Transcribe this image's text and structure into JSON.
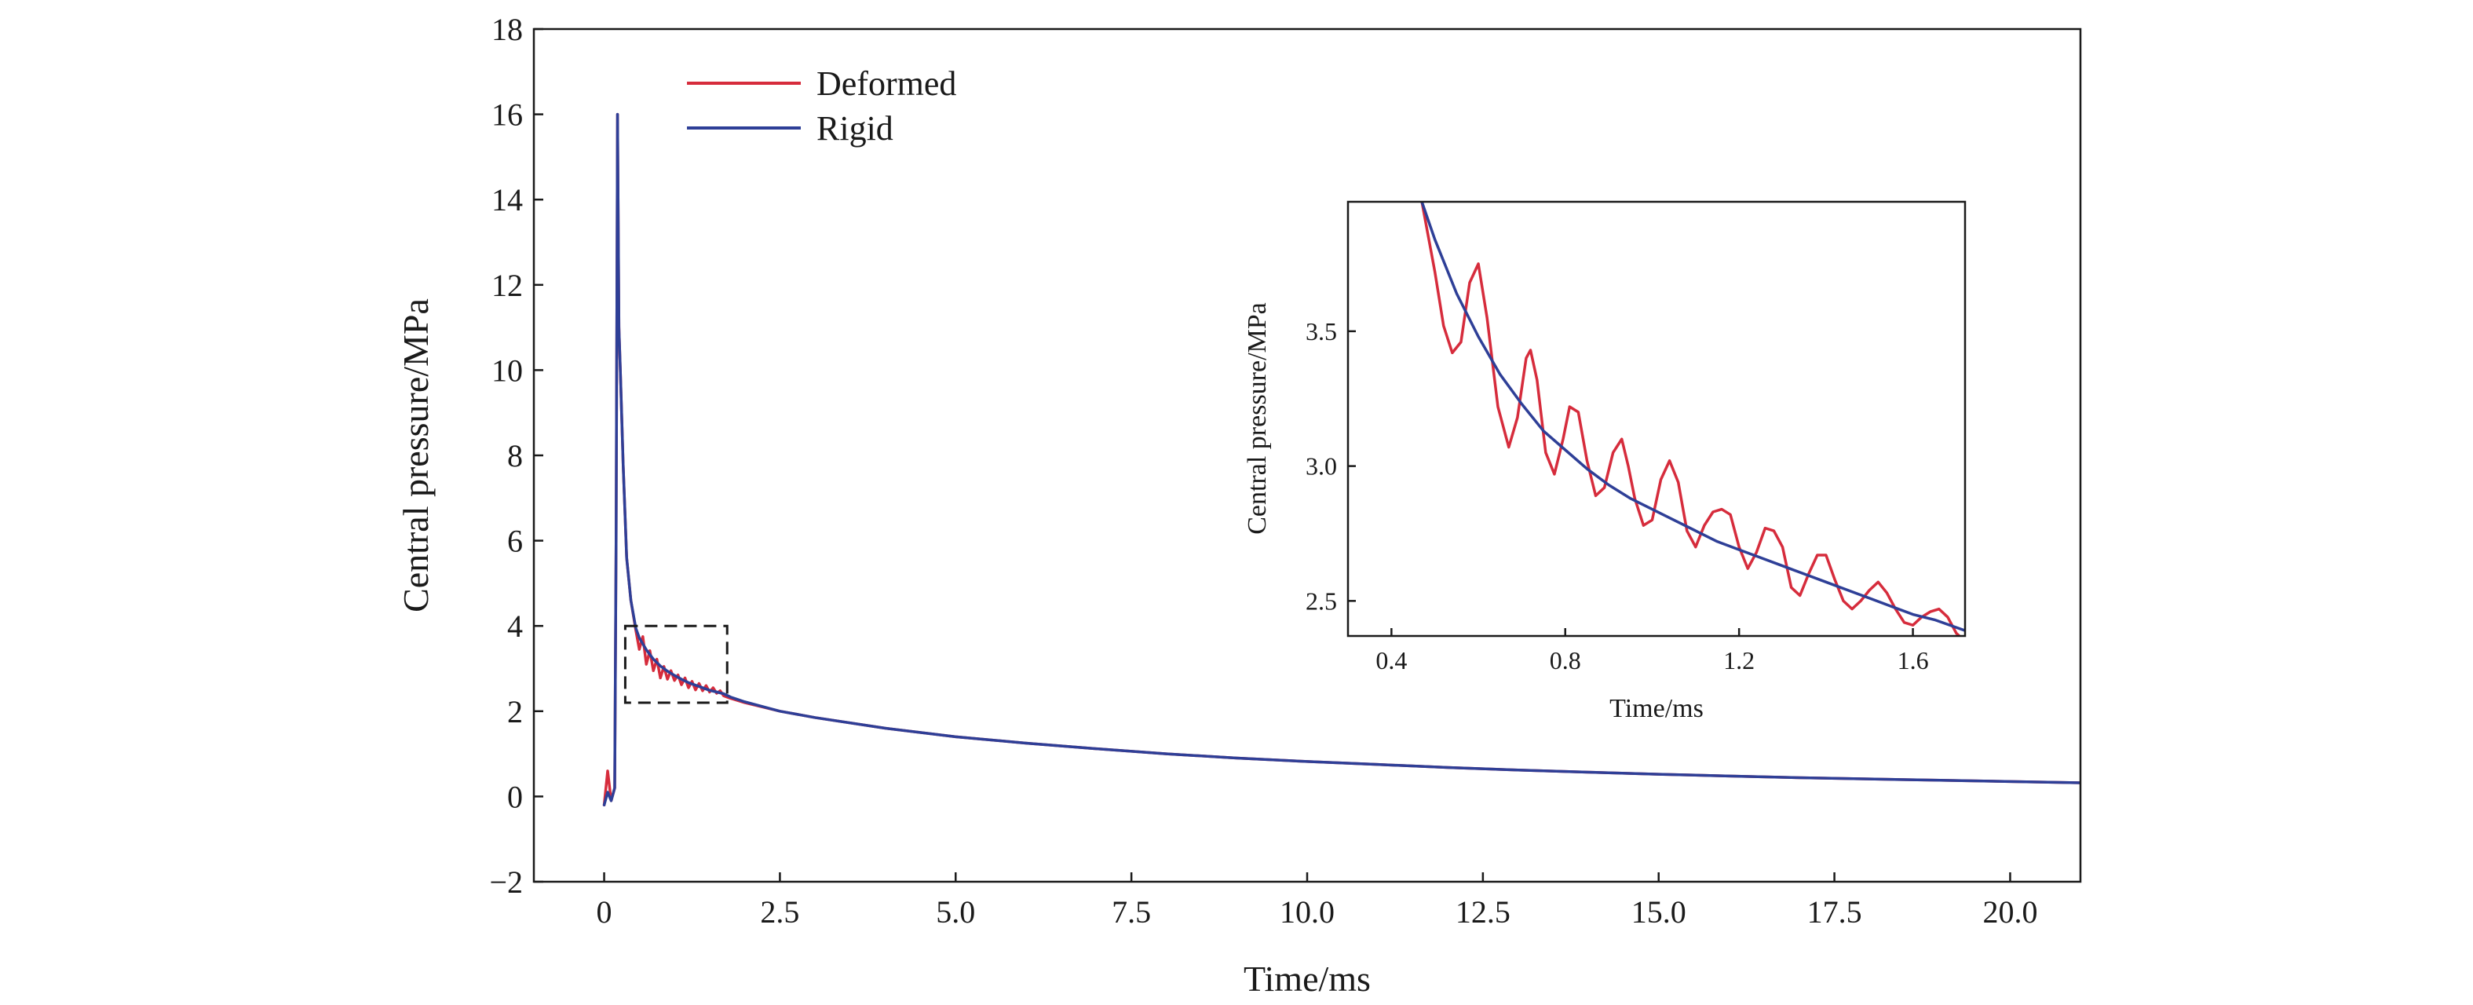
{
  "chart_data": [
    {
      "type": "line",
      "title": "",
      "xlabel": "Time/ms",
      "ylabel": "Central pressure/MPa",
      "xlim": [
        -1,
        21
      ],
      "ylim": [
        -2,
        18
      ],
      "xticks": [
        0,
        2.5,
        5,
        7.5,
        10,
        12.5,
        15,
        17.5,
        20
      ],
      "xtick_labels": [
        "0",
        "2.5",
        "5.0",
        "7.5",
        "10.0",
        "12.5",
        "15.0",
        "17.5",
        "20.0"
      ],
      "yticks": [
        -2,
        0,
        2,
        4,
        6,
        8,
        10,
        12,
        14,
        16,
        18
      ],
      "ytick_labels": [
        "−2",
        "0",
        "2",
        "4",
        "6",
        "8",
        "10",
        "12",
        "14",
        "16",
        "18"
      ],
      "grid": false,
      "legend": "top-left",
      "zoom_box": {
        "x": [
          0.3,
          1.75
        ],
        "y": [
          2.2,
          4.0
        ]
      },
      "series": [
        {
          "name": "Deformed",
          "color": "#d62c3c",
          "x": [
            0,
            0.05,
            0.1,
            0.15,
            0.17,
            0.19,
            0.21,
            0.23,
            0.27,
            0.32,
            0.38,
            0.45,
            0.5,
            0.55,
            0.6,
            0.65,
            0.7,
            0.75,
            0.8,
            0.85,
            0.9,
            0.95,
            1.0,
            1.05,
            1.1,
            1.15,
            1.2,
            1.25,
            1.3,
            1.35,
            1.4,
            1.45,
            1.5,
            1.55,
            1.6,
            1.65,
            1.7,
            1.8,
            2.0,
            2.5,
            3,
            4,
            5,
            6,
            7,
            8,
            9,
            10,
            11,
            12,
            13,
            14,
            15,
            16,
            17,
            18,
            19,
            20,
            21
          ],
          "y": [
            -0.2,
            0.6,
            -0.1,
            0.2,
            6.0,
            16.0,
            11.0,
            10.0,
            7.8,
            5.6,
            4.6,
            3.9,
            3.45,
            3.75,
            3.1,
            3.42,
            2.95,
            3.22,
            2.78,
            3.05,
            2.75,
            2.95,
            2.72,
            2.85,
            2.62,
            2.78,
            2.55,
            2.7,
            2.5,
            2.65,
            2.48,
            2.6,
            2.45,
            2.55,
            2.42,
            2.48,
            2.36,
            2.3,
            2.2,
            2.0,
            1.85,
            1.6,
            1.4,
            1.25,
            1.12,
            1.0,
            0.9,
            0.82,
            0.75,
            0.68,
            0.62,
            0.57,
            0.52,
            0.48,
            0.44,
            0.41,
            0.38,
            0.35,
            0.32
          ]
        },
        {
          "name": "Rigid",
          "color": "#2e3f97",
          "x": [
            0,
            0.05,
            0.1,
            0.15,
            0.17,
            0.19,
            0.21,
            0.23,
            0.27,
            0.32,
            0.38,
            0.45,
            0.5,
            0.6,
            0.7,
            0.8,
            0.9,
            1.0,
            1.1,
            1.2,
            1.3,
            1.4,
            1.5,
            1.6,
            1.7,
            1.8,
            2.0,
            2.5,
            3,
            4,
            5,
            6,
            7,
            8,
            9,
            10,
            11,
            12,
            13,
            14,
            15,
            16,
            17,
            18,
            19,
            20,
            21
          ],
          "y": [
            -0.2,
            0.1,
            -0.1,
            0.2,
            6.0,
            16.0,
            11.0,
            10.0,
            7.8,
            5.6,
            4.6,
            3.95,
            3.72,
            3.44,
            3.22,
            3.06,
            2.94,
            2.84,
            2.75,
            2.67,
            2.61,
            2.55,
            2.49,
            2.45,
            2.41,
            2.33,
            2.22,
            2.0,
            1.85,
            1.6,
            1.4,
            1.25,
            1.12,
            1.0,
            0.9,
            0.82,
            0.75,
            0.68,
            0.62,
            0.57,
            0.52,
            0.48,
            0.44,
            0.41,
            0.38,
            0.35,
            0.32
          ]
        }
      ]
    },
    {
      "type": "line",
      "title": "",
      "xlabel": "Time/ms",
      "ylabel": "Central pressure/MPa",
      "xlim": [
        0.3,
        1.72
      ],
      "ylim": [
        2.37,
        3.98
      ],
      "xticks": [
        0.4,
        0.8,
        1.2,
        1.6
      ],
      "xtick_labels": [
        "0.4",
        "0.8",
        "1.2",
        "1.6"
      ],
      "yticks": [
        2.5,
        3.0,
        3.5
      ],
      "ytick_labels": [
        "2.5",
        "3.0",
        "3.5"
      ],
      "grid": false,
      "series": [
        {
          "name": "Deformed",
          "color": "#d62c3c",
          "x": [
            0.47,
            0.5,
            0.52,
            0.54,
            0.56,
            0.58,
            0.6,
            0.62,
            0.645,
            0.67,
            0.69,
            0.71,
            0.72,
            0.735,
            0.755,
            0.775,
            0.795,
            0.81,
            0.83,
            0.85,
            0.87,
            0.89,
            0.91,
            0.93,
            0.945,
            0.96,
            0.98,
            1.0,
            1.02,
            1.04,
            1.06,
            1.08,
            1.1,
            1.12,
            1.14,
            1.16,
            1.18,
            1.2,
            1.22,
            1.24,
            1.26,
            1.28,
            1.3,
            1.32,
            1.34,
            1.36,
            1.38,
            1.4,
            1.42,
            1.44,
            1.46,
            1.48,
            1.5,
            1.52,
            1.54,
            1.56,
            1.58,
            1.6,
            1.62,
            1.64,
            1.66,
            1.68,
            1.7,
            1.72
          ],
          "y": [
            3.98,
            3.72,
            3.52,
            3.42,
            3.46,
            3.68,
            3.75,
            3.55,
            3.22,
            3.07,
            3.18,
            3.4,
            3.43,
            3.32,
            3.05,
            2.97,
            3.1,
            3.22,
            3.2,
            3.02,
            2.89,
            2.92,
            3.05,
            3.1,
            3.0,
            2.88,
            2.78,
            2.8,
            2.95,
            3.02,
            2.94,
            2.76,
            2.7,
            2.78,
            2.83,
            2.84,
            2.82,
            2.7,
            2.62,
            2.68,
            2.77,
            2.76,
            2.7,
            2.55,
            2.52,
            2.6,
            2.67,
            2.67,
            2.58,
            2.5,
            2.47,
            2.5,
            2.54,
            2.57,
            2.53,
            2.47,
            2.42,
            2.41,
            2.44,
            2.46,
            2.47,
            2.44,
            2.38,
            2.35
          ]
        },
        {
          "name": "Rigid",
          "color": "#2e3f97",
          "x": [
            0.47,
            0.5,
            0.55,
            0.6,
            0.65,
            0.7,
            0.75,
            0.8,
            0.85,
            0.9,
            0.95,
            1.0,
            1.05,
            1.1,
            1.15,
            1.2,
            1.25,
            1.3,
            1.35,
            1.4,
            1.45,
            1.5,
            1.55,
            1.6,
            1.65,
            1.72
          ],
          "y": [
            3.98,
            3.84,
            3.64,
            3.48,
            3.34,
            3.23,
            3.13,
            3.06,
            2.99,
            2.93,
            2.88,
            2.84,
            2.8,
            2.76,
            2.72,
            2.69,
            2.66,
            2.63,
            2.6,
            2.57,
            2.54,
            2.51,
            2.48,
            2.45,
            2.43,
            2.39
          ]
        }
      ]
    }
  ]
}
